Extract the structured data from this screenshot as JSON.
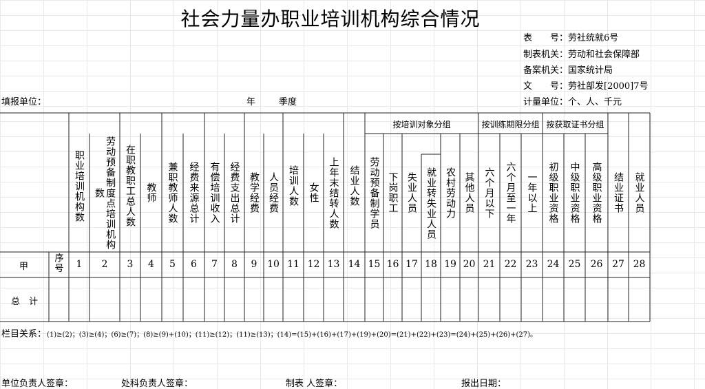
{
  "title": "社会力量办职业培训机构综合情况",
  "meta": {
    "form_no": "表　　号：劳社统就6号",
    "issuer": "制表机关：劳动和社会保障部",
    "approver": "备案机关：国家统计局",
    "doc_no": "文　　号：劳社部发[2000]7号",
    "unit": "计量单位：个、人、千元"
  },
  "fill_unit": "填报单位：",
  "year": "年",
  "quarter": "季度",
  "groups": {
    "by_object": "按培训对象分组",
    "by_period": "按训练期限分组",
    "by_cert": "按获取证书分组"
  },
  "headers": [
    "职业培训机构数",
    "劳动预备制度点培训机构数",
    "在职教职工总人数",
    "教师",
    "兼职教师人数",
    "经费来源总计",
    "有偿培训收入",
    "经费支出总计",
    "教学经费",
    "人员经费",
    "培训人数",
    "女性",
    "上年末结转人数",
    "结业人数",
    "劳动预备制学员",
    "下岗职工",
    "失业人员",
    "就业转失业人员",
    "农村劳动力",
    "其他人员",
    "六个月以下",
    "六个月至一年",
    "一年以上",
    "初级职业资格",
    "中级职业资格",
    "高级职业资格",
    "结业证书",
    "就业人员"
  ],
  "row_labels": {
    "jia": "甲",
    "seq": "序号",
    "total": "总　计"
  },
  "numbers": [
    "1",
    "2",
    "3",
    "4",
    "5",
    "6",
    "7",
    "8",
    "9",
    "10",
    "11",
    "12",
    "13",
    "14",
    "15",
    "16",
    "17",
    "18",
    "19",
    "20",
    "21",
    "22",
    "23",
    "24",
    "25",
    "26",
    "27",
    "28"
  ],
  "relation": {
    "label": "栏目关系：",
    "text": "(1)≥(2)；(3)≥(4)；(6)≥(7)；(8)≥(9)+(10)；(11)≥(12)；(11)≥(13)；(14)=(15)+(16)+(17)+(19)+(20)=(21)+(22)+(23)=(24)+(25)+(26)+(27)。"
  },
  "footer": {
    "unit_head": "单位负责人签章：",
    "dept_head": "处科负责人签章：",
    "maker": "制表 人签章：",
    "date": "报出日期："
  }
}
